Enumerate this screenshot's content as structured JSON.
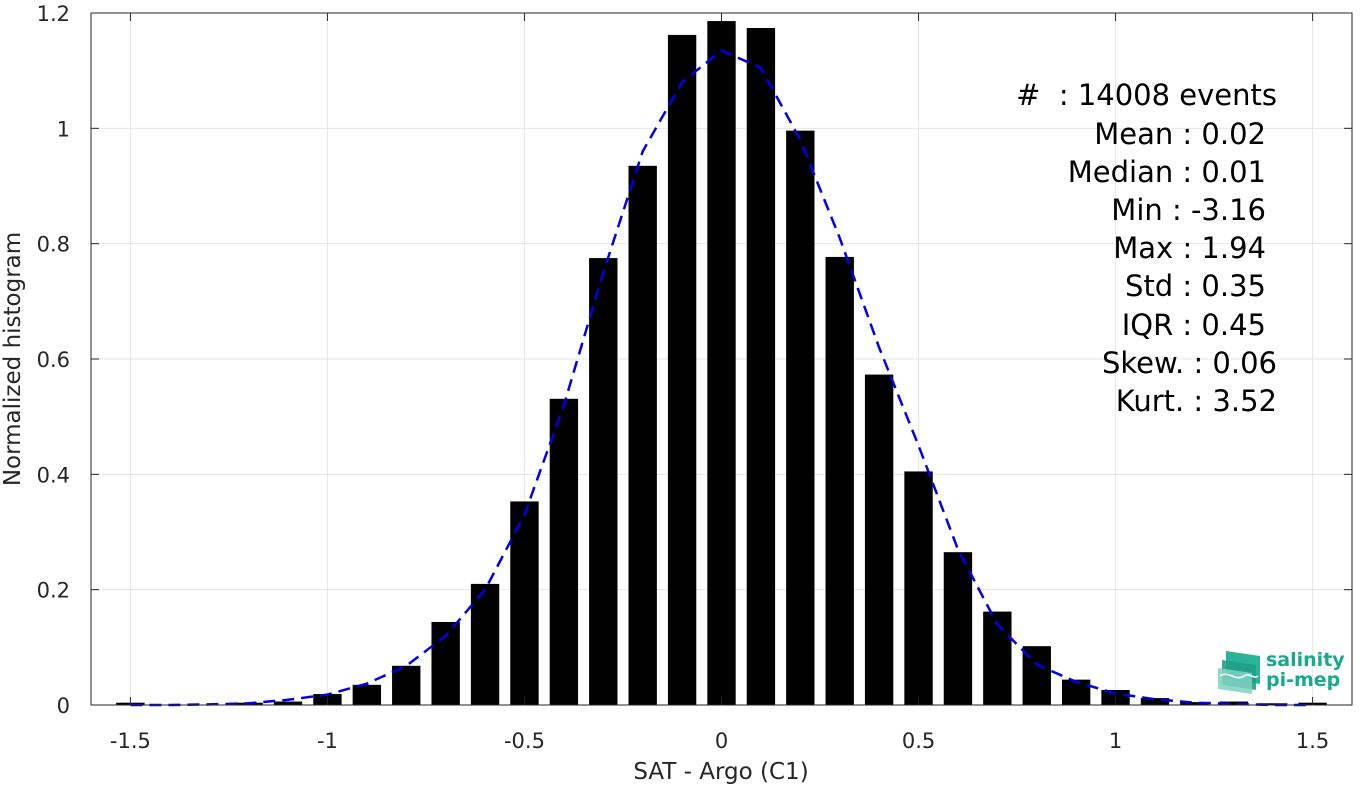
{
  "chart_data": {
    "type": "bar",
    "xlabel": "SAT - Argo (C1)",
    "ylabel": "Normalized histogram",
    "xlim": [
      -1.6,
      1.6
    ],
    "ylim": [
      0,
      1.2
    ],
    "xticks": [
      -1.5,
      -1,
      -0.5,
      0,
      0.5,
      1,
      1.5
    ],
    "xtick_labels": [
      "-1.5",
      "-1",
      "-0.5",
      "0",
      "0.5",
      "1",
      "1.5"
    ],
    "yticks": [
      0,
      0.2,
      0.4,
      0.6,
      0.8,
      1,
      1.2
    ],
    "ytick_labels": [
      "0",
      "0.2",
      "0.4",
      "0.6",
      "0.8",
      "1",
      "1.2"
    ],
    "grid": true,
    "bar_color": "#000000",
    "fit_color": "#0000e6",
    "bins": [
      -1.5,
      -1.4,
      -1.3,
      -1.2,
      -1.1,
      -1.0,
      -0.9,
      -0.8,
      -0.7,
      -0.6,
      -0.5,
      -0.4,
      -0.3,
      -0.2,
      -0.1,
      0.0,
      0.1,
      0.2,
      0.3,
      0.4,
      0.5,
      0.6,
      0.7,
      0.8,
      0.9,
      1.0,
      1.1,
      1.2,
      1.3,
      1.4,
      1.5
    ],
    "values": [
      0.004,
      0.0,
      0.0,
      0.004,
      0.006,
      0.019,
      0.035,
      0.068,
      0.144,
      0.21,
      0.353,
      0.531,
      0.775,
      0.935,
      1.162,
      1.186,
      1.174,
      0.996,
      0.777,
      0.573,
      0.405,
      0.265,
      0.162,
      0.102,
      0.044,
      0.026,
      0.012,
      0.005,
      0.006,
      0.003,
      0.004
    ],
    "fit_series": {
      "x": [
        -1.5,
        -1.4,
        -1.3,
        -1.2,
        -1.1,
        -1.0,
        -0.9,
        -0.8,
        -0.7,
        -0.6,
        -0.5,
        -0.4,
        -0.3,
        -0.2,
        -0.1,
        0.0,
        0.1,
        0.2,
        0.3,
        0.4,
        0.5,
        0.6,
        0.7,
        0.8,
        0.9,
        1.0,
        1.1,
        1.2,
        1.3,
        1.4,
        1.5
      ],
      "y": [
        0.0,
        0.0,
        0.001,
        0.003,
        0.009,
        0.018,
        0.037,
        0.068,
        0.12,
        0.2,
        0.33,
        0.52,
        0.75,
        0.96,
        1.08,
        1.135,
        1.105,
        0.98,
        0.81,
        0.62,
        0.45,
        0.27,
        0.14,
        0.07,
        0.04,
        0.02,
        0.01,
        0.004,
        0.002,
        0.0,
        0.0
      ]
    }
  },
  "stats": {
    "events": "#  : 14008 events",
    "mean": "Mean : 0.02",
    "median": "Median : 0.01",
    "min": "Min : -3.16",
    "max": "Max : 1.94",
    "std": "Std : 0.35",
    "iqr": "IQR : 0.45",
    "skew": "Skew. : 0.06",
    "kurt": "Kurt. : 3.52"
  },
  "logo": {
    "line1": "salinity",
    "line2": "pi-mep",
    "color": "#1aa88e"
  }
}
